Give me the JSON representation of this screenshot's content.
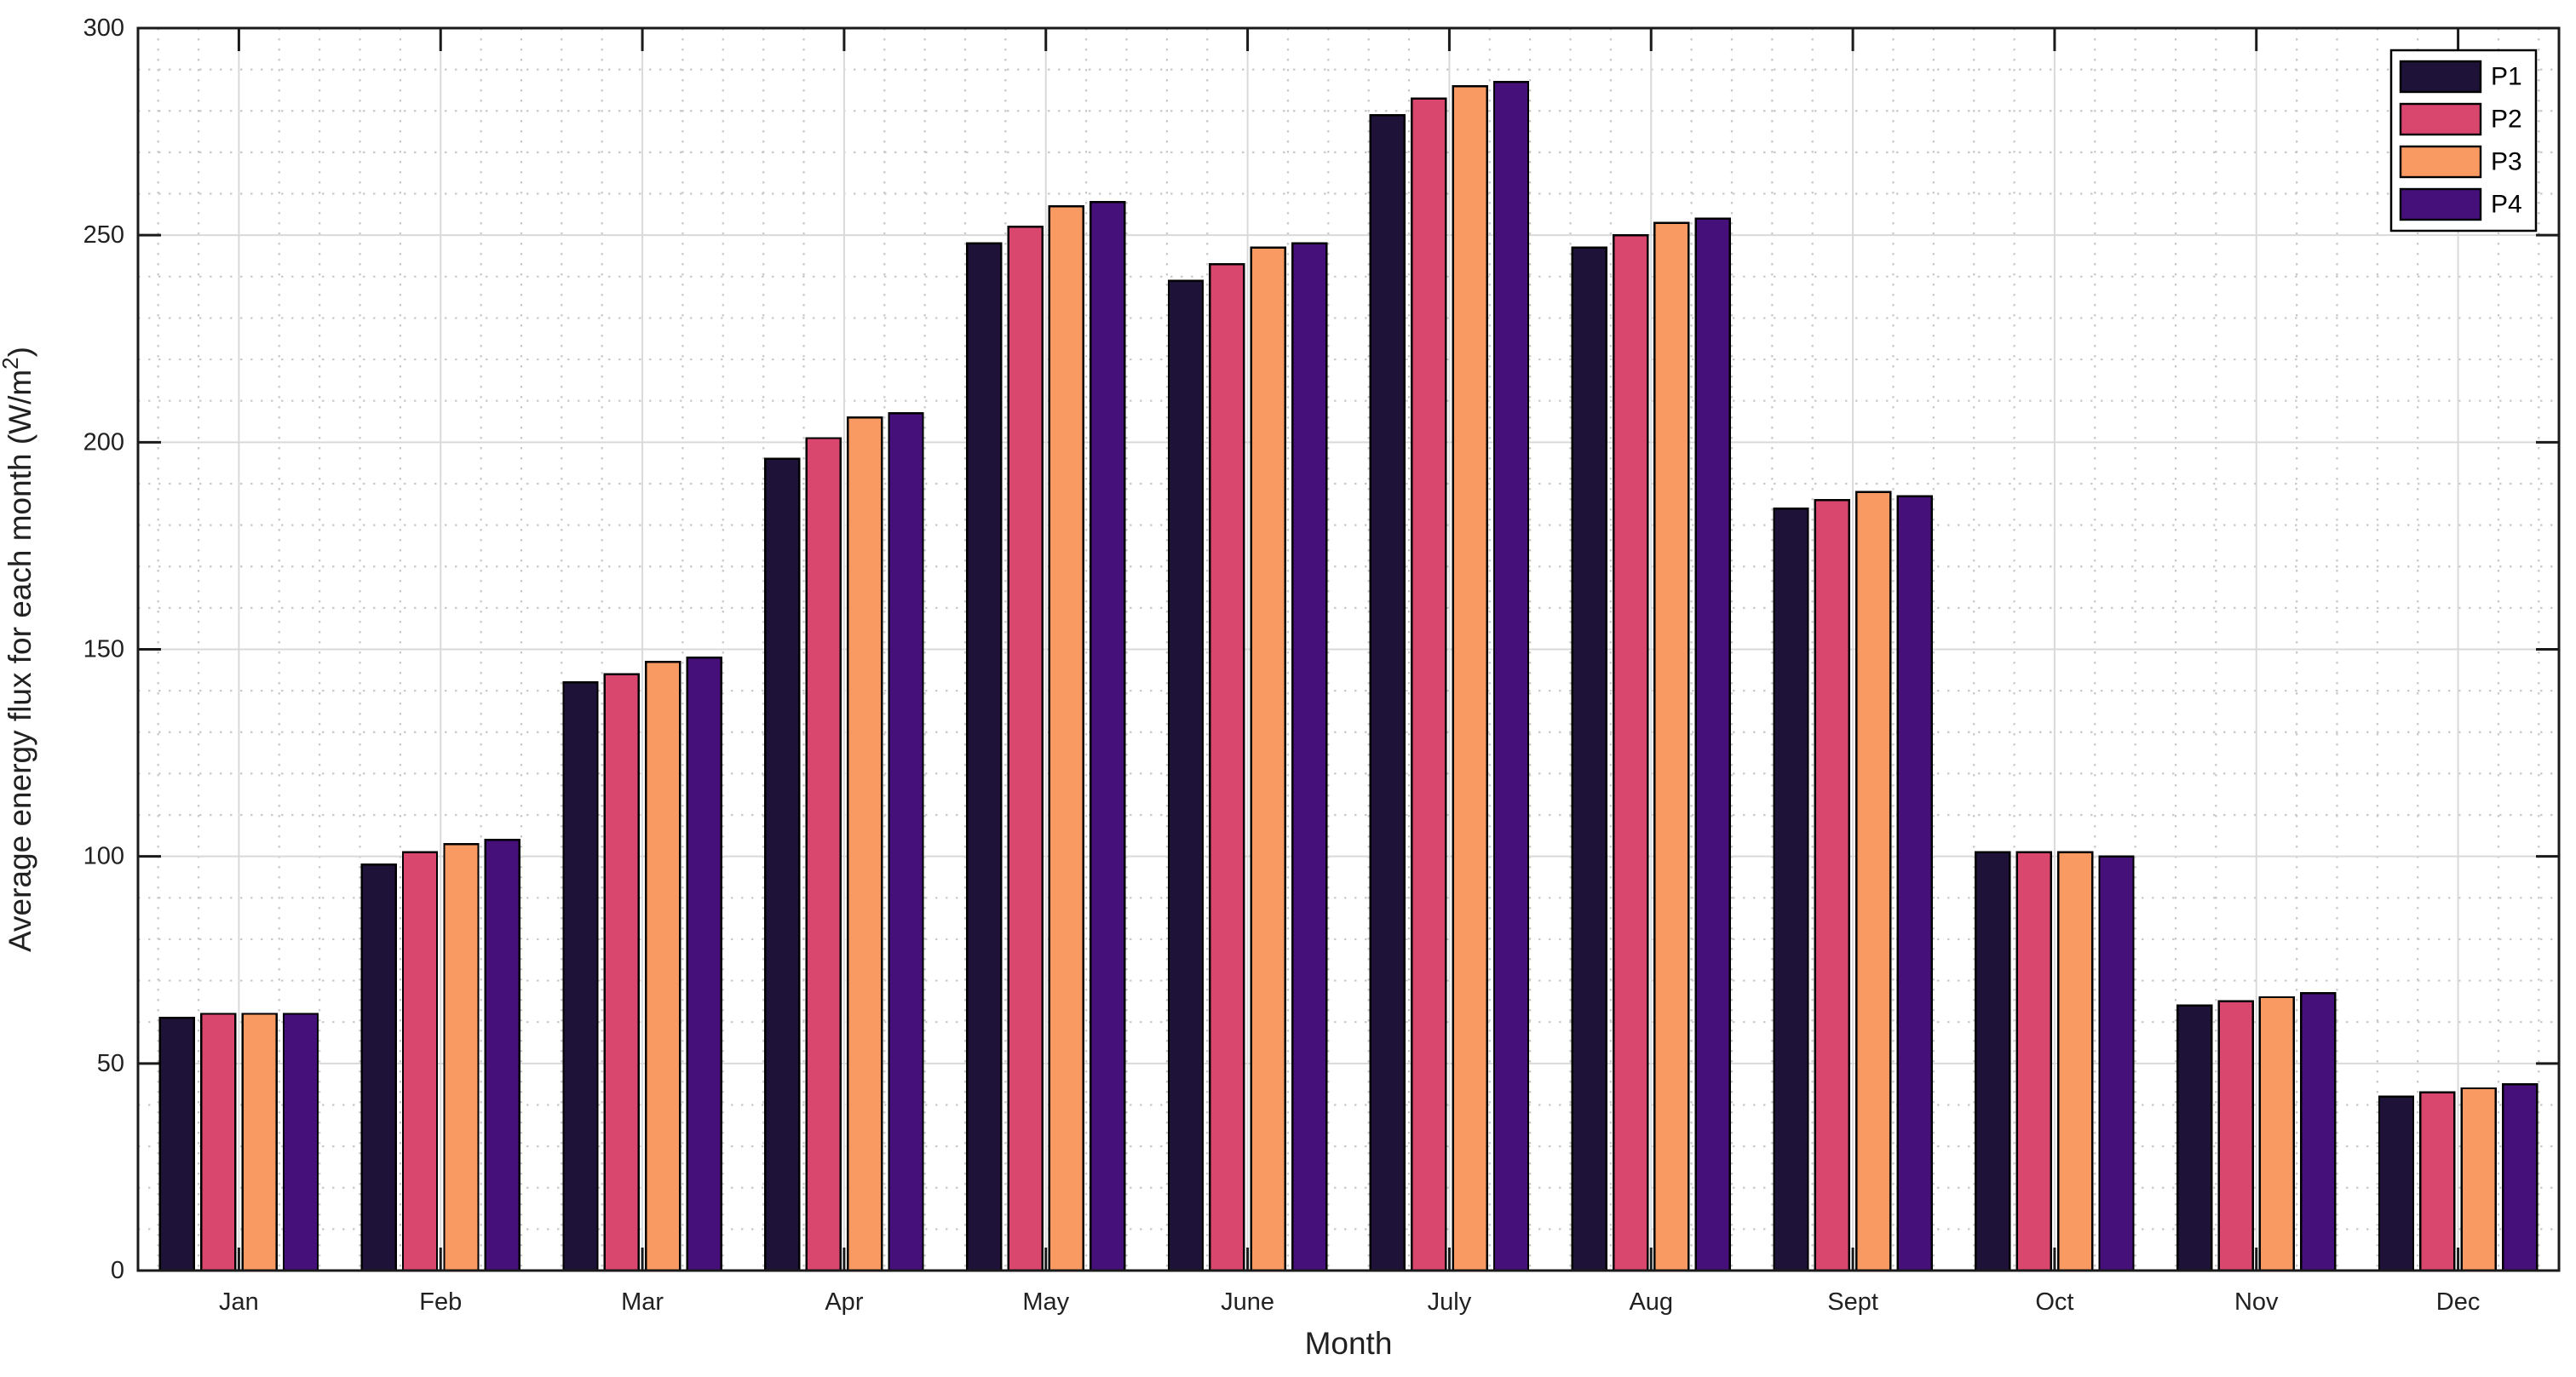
{
  "chart_data": {
    "type": "bar",
    "title": "",
    "xlabel": "Month",
    "ylabel": "Average energy flux for each month (W/m^2)",
    "ylabel_parts": {
      "pre": "Average energy flux for each month (W/m",
      "sup": "2",
      "post": ")"
    },
    "categories": [
      "Jan",
      "Feb",
      "Mar",
      "Apr",
      "May",
      "June",
      "July",
      "Aug",
      "Sept",
      "Oct",
      "Nov",
      "Dec"
    ],
    "series": [
      {
        "name": "P1",
        "color": "#1f1238",
        "values": [
          61,
          98,
          142,
          196,
          248,
          239,
          279,
          247,
          184,
          101,
          64,
          42
        ]
      },
      {
        "name": "P2",
        "color": "#d9476e",
        "values": [
          62,
          101,
          144,
          201,
          252,
          243,
          283,
          250,
          186,
          101,
          65,
          43
        ]
      },
      {
        "name": "P3",
        "color": "#f99a62",
        "values": [
          62,
          103,
          147,
          206,
          257,
          247,
          286,
          253,
          188,
          101,
          66,
          44
        ]
      },
      {
        "name": "P4",
        "color": "#46107a",
        "values": [
          62,
          104,
          148,
          207,
          258,
          248,
          287,
          254,
          187,
          100,
          67,
          45
        ]
      }
    ],
    "ylim": [
      0,
      300
    ],
    "yticks": [
      0,
      50,
      100,
      150,
      200,
      250,
      300
    ],
    "grid": {
      "major": "solid",
      "minor": "dotted",
      "minor_step_y": 10,
      "x_minor_divisions": 5
    },
    "legend": {
      "position": "top-right",
      "items": [
        "P1",
        "P2",
        "P3",
        "P4"
      ]
    },
    "colors": {
      "background": "#ffffff",
      "bar_edge": "#000000",
      "axis": "#1a1a1a",
      "text": "#212121",
      "grid_major": "#d9d9d9",
      "grid_minor": "#c9c9c9",
      "legend_border": "#000000",
      "legend_bg": "#ffffff"
    }
  }
}
